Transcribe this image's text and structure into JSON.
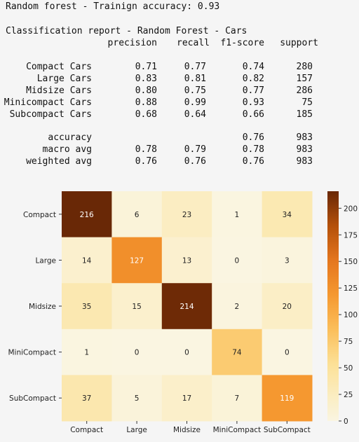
{
  "report": {
    "train_line": "Random forest - Trainign accuracy: 0.93",
    "title": "Classification report - Random Forest - Cars",
    "headers": [
      "precision",
      "recall",
      "f1-score",
      "support"
    ],
    "rows": [
      {
        "label": "Compact Cars",
        "precision": "0.71",
        "recall": "0.77",
        "f1": "0.74",
        "support": "280"
      },
      {
        "label": "Large Cars",
        "precision": "0.83",
        "recall": "0.81",
        "f1": "0.82",
        "support": "157"
      },
      {
        "label": "Midsize Cars",
        "precision": "0.80",
        "recall": "0.75",
        "f1": "0.77",
        "support": "286"
      },
      {
        "label": "Minicompact Cars",
        "precision": "0.88",
        "recall": "0.99",
        "f1": "0.93",
        "support": "75"
      },
      {
        "label": "Subcompact Cars",
        "precision": "0.68",
        "recall": "0.64",
        "f1": "0.66",
        "support": "185"
      }
    ],
    "summary": [
      {
        "label": "accuracy",
        "precision": "",
        "recall": "",
        "f1": "0.76",
        "support": "983"
      },
      {
        "label": "macro avg",
        "precision": "0.78",
        "recall": "0.79",
        "f1": "0.78",
        "support": "983"
      },
      {
        "label": "weighted avg",
        "precision": "0.76",
        "recall": "0.76",
        "f1": "0.76",
        "support": "983"
      }
    ]
  },
  "chart_data": {
    "type": "heatmap",
    "x_categories": [
      "Compact",
      "Large",
      "Midsize",
      "MiniCompact",
      "SubCompact"
    ],
    "y_categories": [
      "Compact",
      "Large",
      "Midsize",
      "MiniCompact",
      "SubCompact"
    ],
    "values": [
      [
        216,
        6,
        23,
        1,
        34
      ],
      [
        14,
        127,
        13,
        0,
        3
      ],
      [
        35,
        15,
        214,
        2,
        20
      ],
      [
        1,
        0,
        0,
        74,
        0
      ],
      [
        37,
        5,
        17,
        7,
        119
      ]
    ],
    "colormap": "YlOrBr",
    "colorbar": {
      "min": 0,
      "max": 216,
      "ticks": [
        0,
        25,
        50,
        75,
        100,
        125,
        150,
        175,
        200
      ]
    }
  }
}
